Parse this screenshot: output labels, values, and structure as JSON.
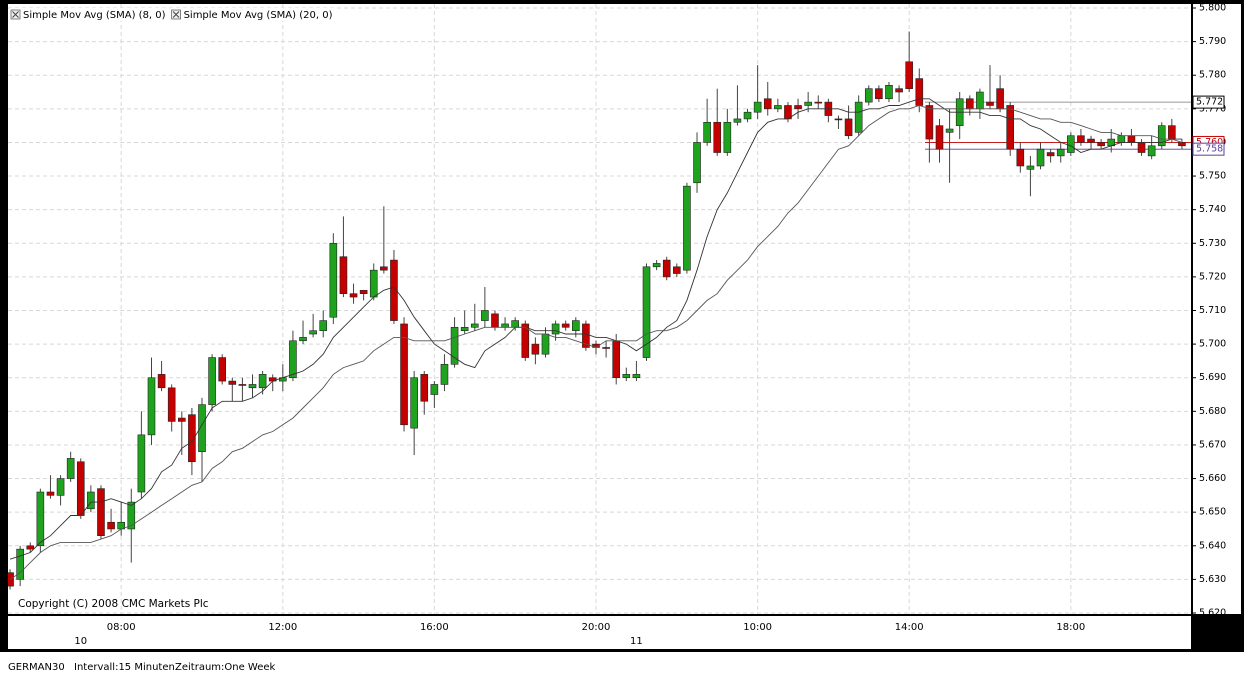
{
  "chart_data": {
    "type": "candlestick",
    "annotation": "Copyright (C) 2008 CMC Markets Plc",
    "up_color": "#1fa31f",
    "down_color": "#c40000",
    "grid": true,
    "ylim": [
      5.62,
      5.8
    ],
    "yticks": [
      {
        "value": 5.62,
        "label": "5.620"
      },
      {
        "value": 5.63,
        "label": "5.630"
      },
      {
        "value": 5.64,
        "label": "5.640"
      },
      {
        "value": 5.65,
        "label": "5.650"
      },
      {
        "value": 5.66,
        "label": "5.660"
      },
      {
        "value": 5.67,
        "label": "5.670"
      },
      {
        "value": 5.68,
        "label": "5.680"
      },
      {
        "value": 5.69,
        "label": "5.690"
      },
      {
        "value": 5.7,
        "label": "5.700"
      },
      {
        "value": 5.71,
        "label": "5.710"
      },
      {
        "value": 5.72,
        "label": "5.720"
      },
      {
        "value": 5.73,
        "label": "5.730"
      },
      {
        "value": 5.74,
        "label": "5.740"
      },
      {
        "value": 5.75,
        "label": "5.750"
      },
      {
        "value": 5.76,
        "label": "5.760"
      },
      {
        "value": 5.77,
        "label": "5.770"
      },
      {
        "value": 5.78,
        "label": "5.780"
      },
      {
        "value": 5.79,
        "label": "5.790"
      },
      {
        "value": 5.8,
        "label": "5.800"
      }
    ],
    "categories": [
      null,
      null,
      null,
      null,
      null,
      null,
      null,
      null,
      null,
      null,
      null,
      "08:00",
      null,
      null,
      null,
      null,
      null,
      null,
      null,
      null,
      null,
      null,
      null,
      null,
      null,
      null,
      null,
      "12:00",
      null,
      null,
      null,
      null,
      null,
      null,
      null,
      null,
      null,
      null,
      null,
      null,
      null,
      null,
      "16:00",
      null,
      null,
      null,
      null,
      null,
      null,
      null,
      null,
      null,
      null,
      null,
      null,
      null,
      null,
      null,
      "20:00",
      null,
      null,
      null,
      null,
      null,
      null,
      null,
      null,
      null,
      null,
      null,
      null,
      null,
      null,
      null,
      "10:00",
      null,
      null,
      null,
      null,
      null,
      null,
      null,
      null,
      null,
      null,
      null,
      null,
      null,
      null,
      "14:00",
      null,
      null,
      null,
      null,
      null,
      null,
      null,
      null,
      null,
      null,
      null,
      null,
      null,
      null,
      null,
      "18:00",
      null,
      null,
      null,
      null,
      null,
      null,
      null,
      null,
      null,
      null,
      null
    ],
    "days": [
      null,
      null,
      null,
      null,
      null,
      null,
      null,
      "10",
      null,
      null,
      null,
      null,
      null,
      null,
      null,
      null,
      null,
      null,
      null,
      null,
      null,
      null,
      null,
      null,
      null,
      null,
      null,
      null,
      null,
      null,
      null,
      null,
      null,
      null,
      null,
      null,
      null,
      null,
      null,
      null,
      null,
      null,
      null,
      null,
      null,
      null,
      null,
      null,
      null,
      null,
      null,
      null,
      null,
      null,
      null,
      null,
      null,
      null,
      null,
      null,
      null,
      null,
      "11",
      null,
      null,
      null,
      null,
      null,
      null,
      null,
      null,
      null,
      null,
      null,
      null,
      null,
      null,
      null,
      null,
      null,
      null,
      null,
      null,
      null,
      null,
      null,
      null,
      null,
      null,
      null,
      null,
      null,
      null,
      null,
      null,
      null,
      null,
      null,
      null,
      null,
      null,
      null,
      null,
      null,
      null,
      null,
      null,
      null,
      null,
      null,
      null,
      null,
      null,
      null,
      null,
      null,
      null
    ],
    "open": [
      5.632,
      5.63,
      5.64,
      5.64,
      5.656,
      5.655,
      5.66,
      5.665,
      5.651,
      5.657,
      5.647,
      5.645,
      5.645,
      5.656,
      5.673,
      5.691,
      5.687,
      5.678,
      5.679,
      5.668,
      5.682,
      5.696,
      5.689,
      5.688,
      5.687,
      5.687,
      5.69,
      5.689,
      5.69,
      5.701,
      5.703,
      5.704,
      5.708,
      5.726,
      5.715,
      5.716,
      5.714,
      5.723,
      5.725,
      5.706,
      5.675,
      5.691,
      5.685,
      5.688,
      5.694,
      5.704,
      5.705,
      5.707,
      5.709,
      5.705,
      5.705,
      5.706,
      5.7,
      5.697,
      5.703,
      5.706,
      5.704,
      5.706,
      5.7,
      5.699,
      5.701,
      5.69,
      5.69,
      5.696,
      5.723,
      5.725,
      5.723,
      5.722,
      5.748,
      5.76,
      5.766,
      5.757,
      5.766,
      5.767,
      5.769,
      5.773,
      5.77,
      5.771,
      5.771,
      5.771,
      5.772,
      5.772,
      5.767,
      5.767,
      5.763,
      5.772,
      5.776,
      5.773,
      5.776,
      5.784,
      5.779,
      5.771,
      5.765,
      5.763,
      5.765,
      5.773,
      5.77,
      5.772,
      5.776,
      5.771,
      5.758,
      5.752,
      5.753,
      5.757,
      5.756,
      5.757,
      5.762,
      5.761,
      5.76,
      5.759,
      5.76,
      5.762,
      5.76,
      5.756,
      5.759,
      5.765,
      5.76
    ],
    "high": [
      5.633,
      5.64,
      5.641,
      5.657,
      5.661,
      5.661,
      5.668,
      5.666,
      5.658,
      5.658,
      5.651,
      5.653,
      5.657,
      5.68,
      5.696,
      5.695,
      5.688,
      5.68,
      5.681,
      5.684,
      5.697,
      5.697,
      5.69,
      5.69,
      5.691,
      5.692,
      5.691,
      5.694,
      5.704,
      5.707,
      5.709,
      5.71,
      5.733,
      5.738,
      5.718,
      5.716,
      5.724,
      5.741,
      5.728,
      5.708,
      5.692,
      5.692,
      5.689,
      5.697,
      5.708,
      5.71,
      5.712,
      5.717,
      5.71,
      5.708,
      5.708,
      5.707,
      5.702,
      5.705,
      5.707,
      5.707,
      5.708,
      5.707,
      5.701,
      5.701,
      5.703,
      5.693,
      5.695,
      5.724,
      5.725,
      5.726,
      5.724,
      5.748,
      5.763,
      5.773,
      5.776,
      5.77,
      5.777,
      5.77,
      5.783,
      5.778,
      5.773,
      5.772,
      5.773,
      5.775,
      5.774,
      5.773,
      5.768,
      5.771,
      5.774,
      5.777,
      5.777,
      5.778,
      5.777,
      5.793,
      5.782,
      5.772,
      5.767,
      5.77,
      5.775,
      5.774,
      5.776,
      5.783,
      5.78,
      5.772,
      5.76,
      5.756,
      5.76,
      5.758,
      5.76,
      5.763,
      5.764,
      5.762,
      5.761,
      5.764,
      5.763,
      5.764,
      5.761,
      5.762,
      5.766,
      5.767,
      5.761
    ],
    "low": [
      5.627,
      5.628,
      5.638,
      5.638,
      5.654,
      5.652,
      5.659,
      5.648,
      5.65,
      5.642,
      5.644,
      5.643,
      5.635,
      5.654,
      5.67,
      5.686,
      5.674,
      5.667,
      5.661,
      5.659,
      5.68,
      5.688,
      5.683,
      5.683,
      5.684,
      5.685,
      5.686,
      5.686,
      5.689,
      5.7,
      5.702,
      5.702,
      5.706,
      5.714,
      5.712,
      5.713,
      5.713,
      5.721,
      5.706,
      5.674,
      5.667,
      5.679,
      5.681,
      5.686,
      5.693,
      5.703,
      5.704,
      5.705,
      5.704,
      5.704,
      5.704,
      5.695,
      5.694,
      5.696,
      5.701,
      5.704,
      5.702,
      5.698,
      5.697,
      5.696,
      5.688,
      5.689,
      5.689,
      5.695,
      5.722,
      5.719,
      5.72,
      5.721,
      5.745,
      5.759,
      5.756,
      5.756,
      5.765,
      5.766,
      5.767,
      5.768,
      5.769,
      5.766,
      5.767,
      5.769,
      5.77,
      5.766,
      5.764,
      5.761,
      5.762,
      5.771,
      5.772,
      5.772,
      5.772,
      5.775,
      5.769,
      5.754,
      5.754,
      5.748,
      5.761,
      5.768,
      5.767,
      5.77,
      5.769,
      5.756,
      5.751,
      5.744,
      5.752,
      5.754,
      5.754,
      5.756,
      5.759,
      5.758,
      5.758,
      5.757,
      5.759,
      5.759,
      5.756,
      5.755,
      5.758,
      5.76,
      5.758
    ],
    "close": [
      5.628,
      5.639,
      5.639,
      5.656,
      5.655,
      5.66,
      5.666,
      5.649,
      5.656,
      5.643,
      5.645,
      5.647,
      5.653,
      5.673,
      5.69,
      5.687,
      5.677,
      5.677,
      5.665,
      5.682,
      5.696,
      5.689,
      5.688,
      5.688,
      5.688,
      5.691,
      5.689,
      5.69,
      5.701,
      5.702,
      5.704,
      5.707,
      5.73,
      5.715,
      5.714,
      5.715,
      5.722,
      5.722,
      5.707,
      5.676,
      5.69,
      5.683,
      5.688,
      5.694,
      5.705,
      5.705,
      5.706,
      5.71,
      5.705,
      5.706,
      5.707,
      5.696,
      5.697,
      5.703,
      5.706,
      5.705,
      5.707,
      5.699,
      5.699,
      5.699,
      5.69,
      5.691,
      5.691,
      5.723,
      5.724,
      5.72,
      5.721,
      5.747,
      5.76,
      5.766,
      5.757,
      5.766,
      5.767,
      5.769,
      5.772,
      5.77,
      5.771,
      5.767,
      5.77,
      5.772,
      5.772,
      5.768,
      5.767,
      5.762,
      5.772,
      5.776,
      5.773,
      5.777,
      5.775,
      5.776,
      5.771,
      5.761,
      5.758,
      5.764,
      5.773,
      5.77,
      5.775,
      5.771,
      5.77,
      5.758,
      5.753,
      5.753,
      5.758,
      5.756,
      5.758,
      5.762,
      5.76,
      5.76,
      5.759,
      5.761,
      5.762,
      5.76,
      5.757,
      5.759,
      5.765,
      5.761,
      5.759
    ],
    "series": [
      {
        "name": "Simple Mov Avg (SMA) (8, 0)",
        "color": "#333333",
        "values": [
          5.636,
          5.637,
          5.638,
          5.641,
          5.643,
          5.646,
          5.649,
          5.649,
          5.653,
          5.653,
          5.654,
          5.653,
          5.652,
          5.654,
          5.657,
          5.662,
          5.664,
          5.669,
          5.671,
          5.676,
          5.681,
          5.683,
          5.683,
          5.683,
          5.684,
          5.686,
          5.689,
          5.69,
          5.691,
          5.692,
          5.694,
          5.697,
          5.702,
          5.705,
          5.708,
          5.711,
          5.714,
          5.716,
          5.717,
          5.713,
          5.708,
          5.704,
          5.7,
          5.698,
          5.696,
          5.694,
          5.693,
          5.698,
          5.7,
          5.702,
          5.705,
          5.705,
          5.704,
          5.704,
          5.704,
          5.703,
          5.703,
          5.703,
          5.702,
          5.702,
          5.701,
          5.7,
          5.698,
          5.7,
          5.702,
          5.705,
          5.707,
          5.713,
          5.722,
          5.732,
          5.74,
          5.745,
          5.751,
          5.757,
          5.763,
          5.766,
          5.767,
          5.767,
          5.769,
          5.77,
          5.77,
          5.77,
          5.77,
          5.769,
          5.769,
          5.77,
          5.77,
          5.771,
          5.771,
          5.772,
          5.773,
          5.773,
          5.771,
          5.769,
          5.769,
          5.769,
          5.769,
          5.768,
          5.768,
          5.767,
          5.767,
          5.765,
          5.764,
          5.762,
          5.76,
          5.759,
          5.757,
          5.758,
          5.758,
          5.759,
          5.76,
          5.76,
          5.76,
          5.76,
          5.76,
          5.761,
          5.761
        ]
      },
      {
        "name": "Simple Mov Avg (SMA) (20, 0)",
        "color": "#555555",
        "values": [
          5.63,
          5.632,
          5.635,
          5.638,
          5.64,
          5.641,
          5.641,
          5.641,
          5.641,
          5.642,
          5.643,
          5.645,
          5.646,
          5.648,
          5.65,
          5.652,
          5.654,
          5.656,
          5.658,
          5.659,
          5.663,
          5.665,
          5.668,
          5.669,
          5.671,
          5.673,
          5.674,
          5.676,
          5.678,
          5.681,
          5.684,
          5.687,
          5.691,
          5.693,
          5.694,
          5.695,
          5.698,
          5.7,
          5.702,
          5.702,
          5.701,
          5.701,
          5.701,
          5.701,
          5.702,
          5.703,
          5.704,
          5.705,
          5.705,
          5.705,
          5.705,
          5.705,
          5.703,
          5.703,
          5.702,
          5.702,
          5.701,
          5.7,
          5.699,
          5.701,
          5.701,
          5.701,
          5.701,
          5.703,
          5.704,
          5.704,
          5.705,
          5.707,
          5.71,
          5.713,
          5.715,
          5.719,
          5.722,
          5.725,
          5.729,
          5.732,
          5.735,
          5.739,
          5.742,
          5.746,
          5.75,
          5.754,
          5.758,
          5.759,
          5.762,
          5.765,
          5.767,
          5.769,
          5.77,
          5.77,
          5.771,
          5.77,
          5.77,
          5.77,
          5.77,
          5.77,
          5.77,
          5.77,
          5.77,
          5.77,
          5.769,
          5.768,
          5.767,
          5.767,
          5.766,
          5.766,
          5.765,
          5.764,
          5.763,
          5.763,
          5.762,
          5.762,
          5.762,
          5.762,
          5.761,
          5.761,
          5.76
        ]
      }
    ],
    "price_markers": [
      {
        "value": 5.772,
        "color": "#000000"
      },
      {
        "value": 5.76,
        "label": "5.760",
        "color": "#c40000"
      },
      {
        "value": 5.758,
        "label": "5.758",
        "color": "#5a3fa0"
      }
    ]
  },
  "footer": {
    "symbol": "GERMAN30",
    "interval": "Intervall:15 Minuten",
    "period": "Zeitraum:One Week"
  }
}
